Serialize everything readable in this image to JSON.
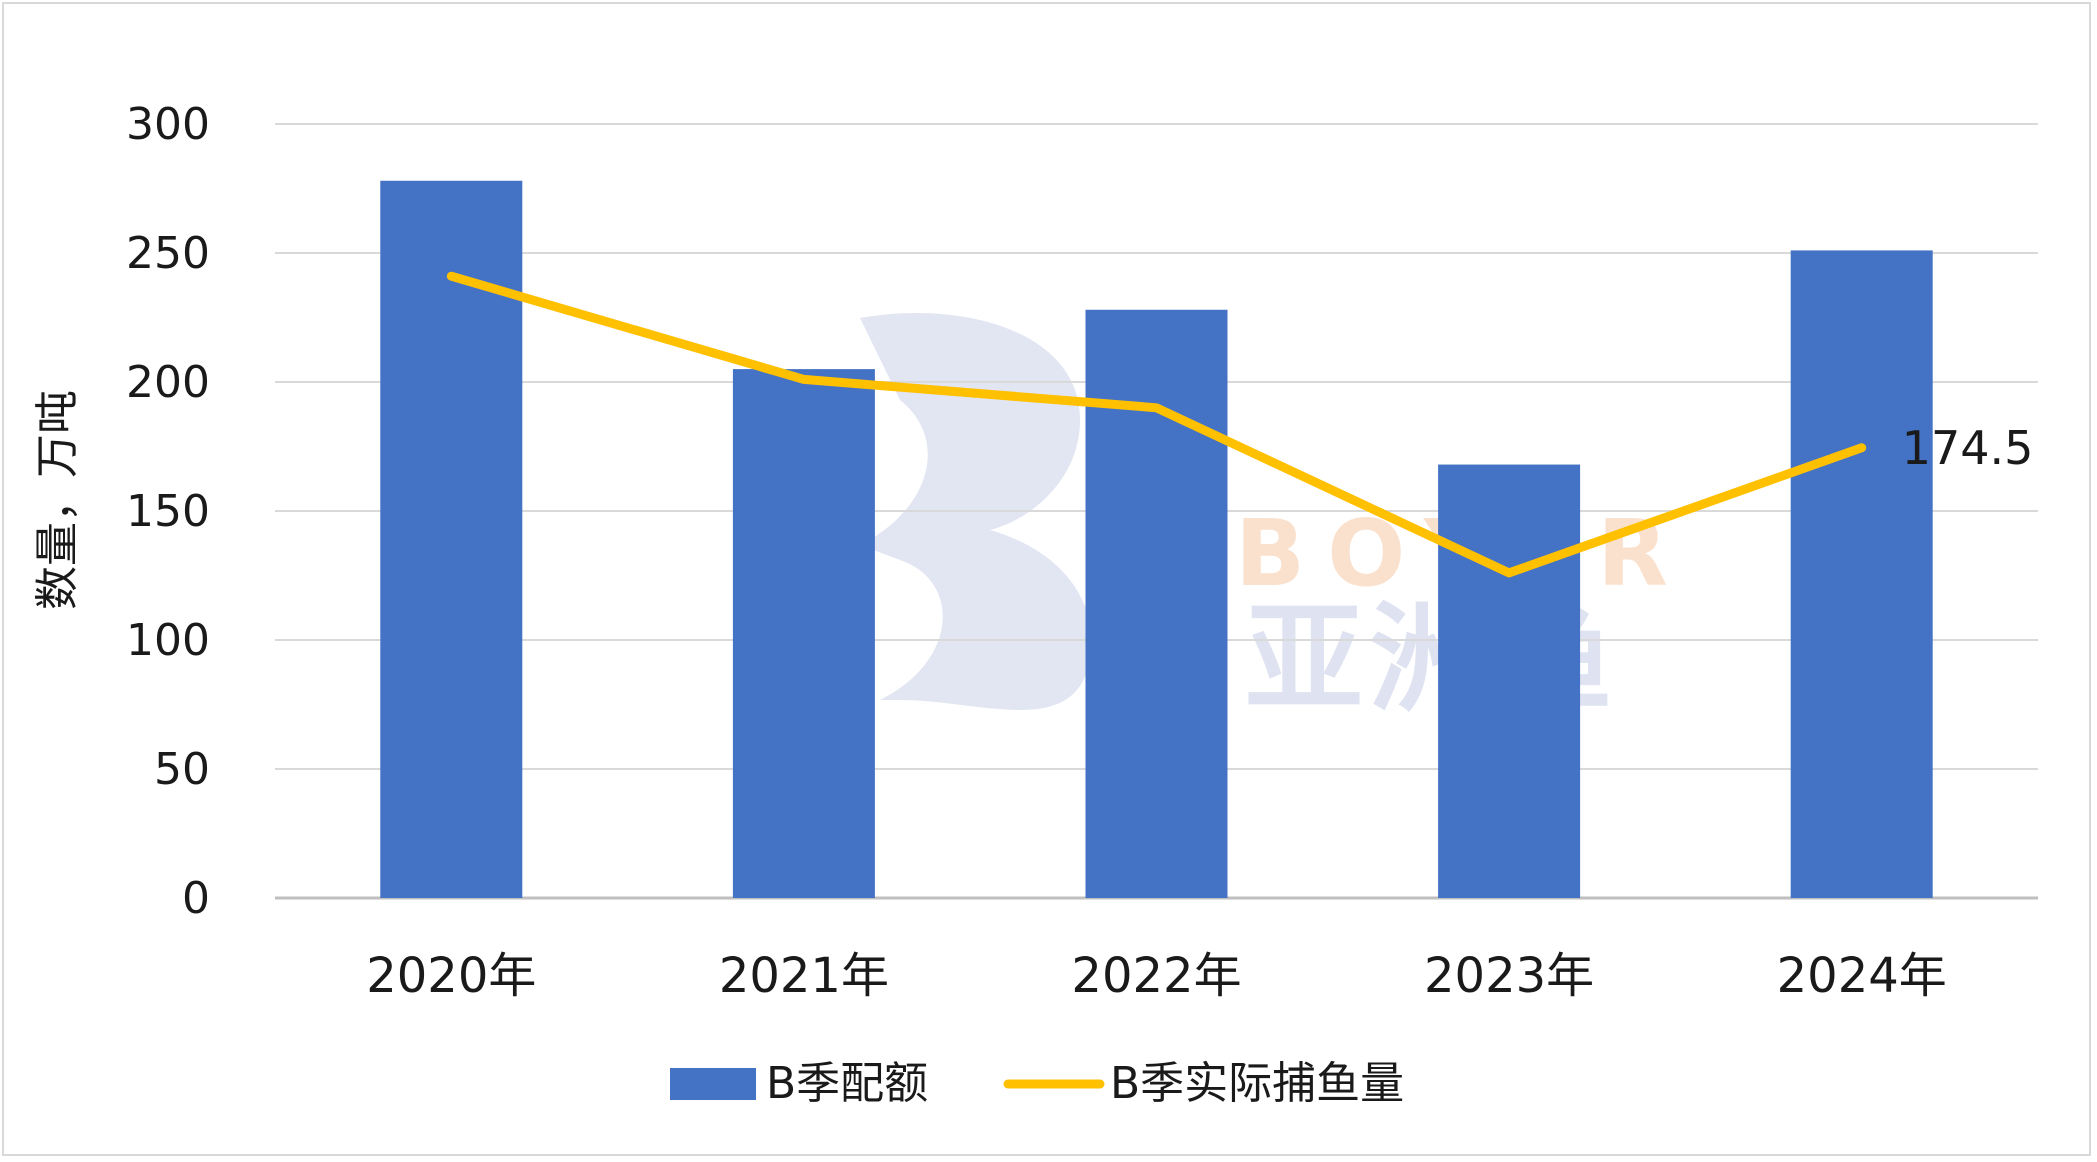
{
  "chart_data": {
    "type": "bar",
    "categories": [
      "2020年",
      "2021年",
      "2022年",
      "2023年",
      "2024年"
    ],
    "ylabel": "数量，万吨",
    "ylim": [
      0,
      300
    ],
    "yticks": [
      0,
      50,
      100,
      150,
      200,
      250,
      300
    ],
    "grid": true,
    "legend_position": "bottom",
    "series": [
      {
        "name": "B季配额",
        "type": "bar",
        "color": "#4472c4",
        "values": [
          278,
          205,
          228,
          168,
          251
        ]
      },
      {
        "name": "B季实际捕鱼量",
        "type": "line",
        "color": "#ffc000",
        "values": [
          241,
          201,
          190,
          126,
          174.5
        ]
      }
    ],
    "annotations": [
      {
        "series": "B季实际捕鱼量",
        "category": "2024年",
        "text": "174.5"
      }
    ]
  },
  "watermark": {
    "letters": "BOYAR",
    "text": "亚洲渔"
  }
}
